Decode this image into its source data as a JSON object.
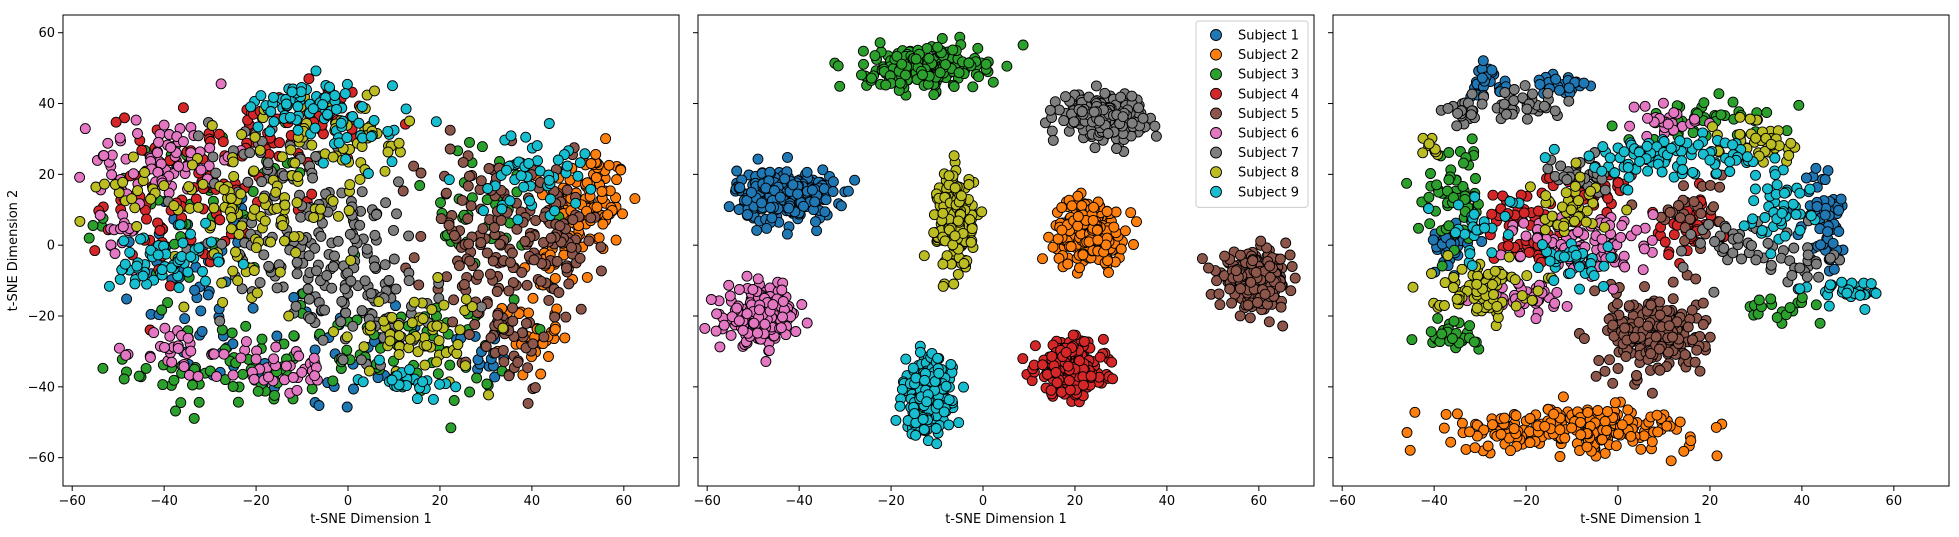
{
  "chart_data": [
    {
      "type": "scatter",
      "panel": "left",
      "xlabel": "t-SNE Dimension 1",
      "ylabel": "t-SNE Dimension 2",
      "xlim": [
        -62,
        72
      ],
      "ylim": [
        -68,
        65
      ],
      "xticks": [
        -60,
        -40,
        -20,
        0,
        20,
        40,
        60
      ],
      "yticks": [
        -60,
        -40,
        -20,
        0,
        20,
        40,
        60
      ],
      "grid": false,
      "legend": "none",
      "series": [
        {
          "name": "Subject 1",
          "regions": [
            [
              -35,
              -5,
              12,
              16,
              40
            ],
            [
              -10,
              -30,
              18,
              12,
              45
            ],
            [
              30,
              -30,
              8,
              8,
              20
            ]
          ]
        },
        {
          "name": "Subject 2",
          "regions": [
            [
              52,
              12,
              6,
              10,
              120
            ],
            [
              40,
              -25,
              4,
              8,
              30
            ],
            [
              44,
              -5,
              6,
              6,
              20
            ]
          ]
        },
        {
          "name": "Subject 3",
          "regions": [
            [
              -25,
              -35,
              15,
              8,
              60
            ],
            [
              10,
              -30,
              18,
              10,
              70
            ],
            [
              -30,
              10,
              15,
              15,
              50
            ],
            [
              30,
              10,
              12,
              12,
              40
            ]
          ]
        },
        {
          "name": "Subject 4",
          "regions": [
            [
              -30,
              20,
              15,
              12,
              70
            ],
            [
              -10,
              35,
              10,
              8,
              50
            ],
            [
              -40,
              5,
              8,
              10,
              30
            ]
          ]
        },
        {
          "name": "Subject 5",
          "regions": [
            [
              30,
              0,
              10,
              18,
              130
            ],
            [
              45,
              0,
              6,
              15,
              70
            ],
            [
              35,
              -25,
              6,
              10,
              40
            ]
          ]
        },
        {
          "name": "Subject 6",
          "regions": [
            [
              -40,
              25,
              10,
              8,
              70
            ],
            [
              -38,
              -30,
              5,
              5,
              30
            ],
            [
              -15,
              -35,
              8,
              5,
              40
            ],
            [
              -50,
              5,
              4,
              10,
              20
            ]
          ]
        },
        {
          "name": "Subject 7",
          "regions": [
            [
              -5,
              0,
              15,
              12,
              150
            ],
            [
              5,
              -20,
              10,
              8,
              50
            ],
            [
              -15,
              25,
              10,
              8,
              40
            ]
          ]
        },
        {
          "name": "Subject 8",
          "regions": [
            [
              -20,
              10,
              12,
              15,
              100
            ],
            [
              0,
              30,
              10,
              10,
              50
            ],
            [
              15,
              -25,
              10,
              8,
              60
            ],
            [
              -45,
              15,
              6,
              6,
              20
            ]
          ]
        },
        {
          "name": "Subject 9",
          "regions": [
            [
              -40,
              -5,
              8,
              6,
              60
            ],
            [
              -10,
              40,
              8,
              4,
              50
            ],
            [
              0,
              35,
              10,
              8,
              40
            ],
            [
              40,
              20,
              8,
              8,
              50
            ],
            [
              12,
              -38,
              6,
              3,
              30
            ]
          ]
        }
      ]
    },
    {
      "type": "scatter",
      "panel": "middle",
      "xlabel": "t-SNE Dimension 1",
      "ylabel": "",
      "xlim": [
        -62,
        72
      ],
      "ylim": [
        -68,
        65
      ],
      "xticks": [
        -60,
        -40,
        -20,
        0,
        20,
        40,
        60
      ],
      "yticks": [
        -60,
        -40,
        -20,
        0,
        20,
        40,
        60
      ],
      "grid": false,
      "legend": "top-right",
      "series": [
        {
          "name": "Subject 1",
          "regions": [
            [
              -43,
              14,
              7,
              5,
              260
            ]
          ]
        },
        {
          "name": "Subject 2",
          "regions": [
            [
              23,
              4,
              5,
              6,
              260
            ]
          ]
        },
        {
          "name": "Subject 3",
          "regions": [
            [
              -13,
              50,
              8,
              4,
              240
            ]
          ]
        },
        {
          "name": "Subject 4",
          "regions": [
            [
              19,
              -35,
              5,
              5,
              260
            ]
          ]
        },
        {
          "name": "Subject 5",
          "regions": [
            [
              59,
              -10,
              5,
              5,
              240
            ]
          ]
        },
        {
          "name": "Subject 6",
          "regions": [
            [
              -48,
              -20,
              5,
              5,
              240
            ]
          ]
        },
        {
          "name": "Subject 7",
          "regions": [
            [
              26,
              37,
              6,
              4,
              240
            ]
          ]
        },
        {
          "name": "Subject 8",
          "regions": [
            [
              -6,
              7,
              2.5,
              9,
              220
            ]
          ]
        },
        {
          "name": "Subject 9",
          "regions": [
            [
              -12,
              -43,
              3.5,
              7,
              240
            ]
          ]
        }
      ]
    },
    {
      "type": "scatter",
      "panel": "right",
      "xlabel": "t-SNE Dimension 1",
      "ylabel": "",
      "xlim": [
        -62,
        72
      ],
      "ylim": [
        -68,
        65
      ],
      "xticks": [
        -60,
        -40,
        -20,
        0,
        20,
        40,
        60
      ],
      "yticks": [
        -60,
        -40,
        -20,
        0,
        20,
        40,
        60
      ],
      "grid": false,
      "legend": "none",
      "series": [
        {
          "name": "Subject 1",
          "regions": [
            [
              -37,
              0,
              3,
              4,
              40
            ],
            [
              -28,
              46,
              3,
              3,
              25
            ],
            [
              45,
              8,
              3,
              10,
              60
            ],
            [
              -12,
              45,
              4,
              3,
              25
            ]
          ]
        },
        {
          "name": "Subject 2",
          "regions": [
            [
              -10,
              -52,
              18,
              4,
              230
            ]
          ]
        },
        {
          "name": "Subject 3",
          "regions": [
            [
              -35,
              15,
              5,
              10,
              60
            ],
            [
              20,
              35,
              12,
              4,
              50
            ],
            [
              -36,
              -25,
              4,
              3,
              30
            ],
            [
              35,
              -18,
              6,
              2,
              20
            ]
          ]
        },
        {
          "name": "Subject 4",
          "regions": [
            [
              -20,
              5,
              6,
              8,
              70
            ],
            [
              15,
              5,
              5,
              5,
              50
            ],
            [
              -5,
              15,
              6,
              5,
              30
            ]
          ]
        },
        {
          "name": "Subject 5",
          "regions": [
            [
              8,
              -25,
              7,
              8,
              220
            ],
            [
              15,
              10,
              5,
              6,
              30
            ]
          ]
        },
        {
          "name": "Subject 6",
          "regions": [
            [
              -5,
              0,
              10,
              7,
              90
            ],
            [
              -20,
              -15,
              6,
              4,
              40
            ],
            [
              10,
              35,
              6,
              3,
              25
            ]
          ]
        },
        {
          "name": "Subject 7",
          "regions": [
            [
              -20,
              40,
              5,
              3,
              40
            ],
            [
              -33,
              38,
              3,
              3,
              25
            ],
            [
              -8,
              20,
              4,
              4,
              30
            ],
            [
              25,
              0,
              8,
              5,
              40
            ],
            [
              40,
              -5,
              4,
              4,
              20
            ]
          ]
        },
        {
          "name": "Subject 8",
          "regions": [
            [
              -30,
              -12,
              7,
              5,
              80
            ],
            [
              30,
              30,
              6,
              4,
              40
            ],
            [
              -40,
              28,
              2,
              2,
              10
            ],
            [
              -10,
              10,
              6,
              6,
              40
            ]
          ]
        },
        {
          "name": "Subject 9",
          "regions": [
            [
              10,
              25,
              15,
              4,
              100
            ],
            [
              -10,
              -5,
              6,
              5,
              40
            ],
            [
              50,
              -13,
              5,
              2,
              30
            ],
            [
              35,
              10,
              5,
              6,
              40
            ],
            [
              -30,
              5,
              6,
              6,
              30
            ]
          ]
        }
      ]
    }
  ],
  "legend": {
    "entries": [
      "Subject 1",
      "Subject 2",
      "Subject 3",
      "Subject 4",
      "Subject 5",
      "Subject 6",
      "Subject 7",
      "Subject 8",
      "Subject 9"
    ]
  },
  "colors": {
    "Subject 1": "#1f77b4",
    "Subject 2": "#ff7f0e",
    "Subject 3": "#2ca02c",
    "Subject 4": "#d62728",
    "Subject 5": "#8c564b",
    "Subject 6": "#e377c2",
    "Subject 7": "#7f7f7f",
    "Subject 8": "#bcbd22",
    "Subject 9": "#17becf",
    "marker_edge": "#000000"
  }
}
